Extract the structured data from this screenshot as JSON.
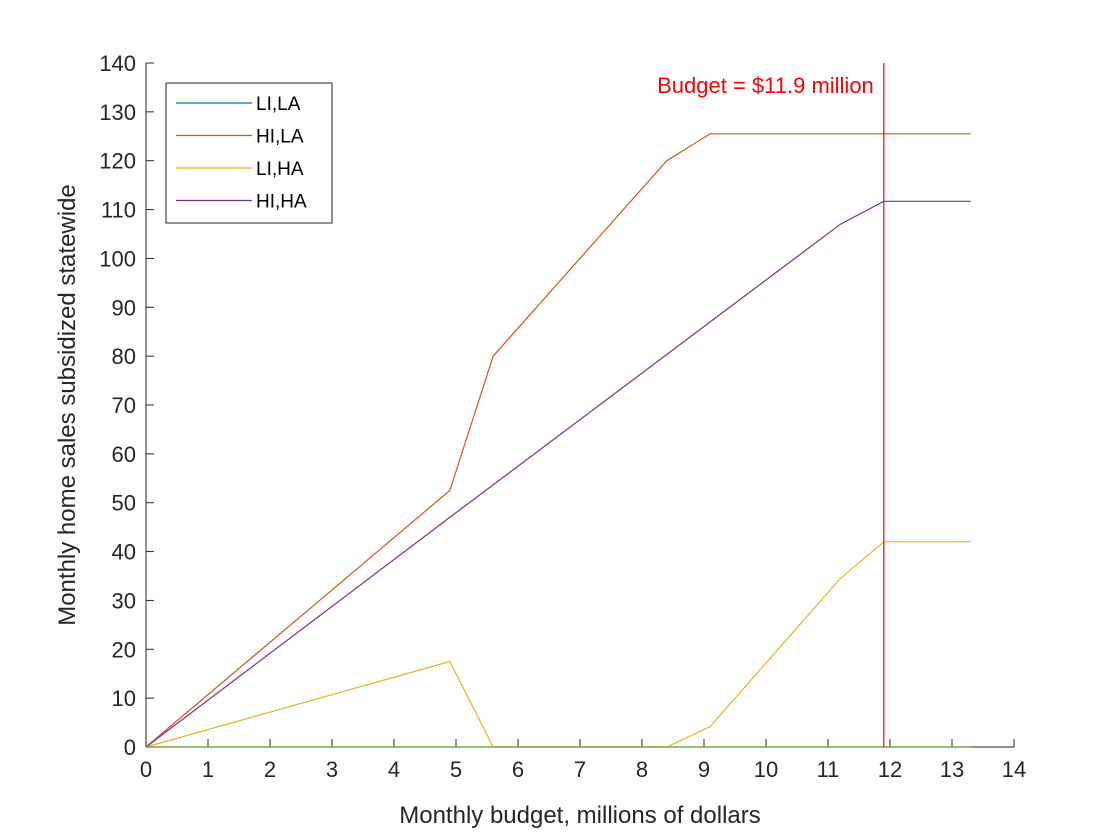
{
  "chart_data": {
    "type": "line",
    "xlabel": "Monthly budget, millions of dollars",
    "ylabel": "Monthly home sales subsidized statewide",
    "xlim": [
      0,
      14
    ],
    "ylim": [
      0,
      140
    ],
    "xticks": [
      0,
      1,
      2,
      3,
      4,
      5,
      6,
      7,
      8,
      9,
      10,
      11,
      12,
      13,
      14
    ],
    "yticks": [
      0,
      10,
      20,
      30,
      40,
      50,
      60,
      70,
      80,
      90,
      100,
      110,
      120,
      130,
      140
    ],
    "grid": false,
    "legend_position": "top-left",
    "series": [
      {
        "name": "LI,LA",
        "color": "#0072BD",
        "x": [
          0,
          13.3
        ],
        "y": [
          0,
          0
        ]
      },
      {
        "name": "HI,LA",
        "color": "#D95319",
        "x": [
          0,
          4.9,
          5.6,
          8.4,
          9.1,
          11.9,
          13.3
        ],
        "y": [
          0,
          52.5,
          80,
          120,
          125.5,
          125.5,
          125.5
        ]
      },
      {
        "name": "LI,HA",
        "color": "#EDB120",
        "x": [
          0,
          4.9,
          5.6,
          8.4,
          9.1,
          11.2,
          11.9,
          13.3
        ],
        "y": [
          0,
          17.5,
          0,
          0,
          4.2,
          34.5,
          42,
          42
        ]
      },
      {
        "name": "HI,HA",
        "color": "#7E2F8E",
        "x": [
          0,
          4.9,
          9.1,
          11.2,
          11.9,
          13.3
        ],
        "y": [
          0,
          47,
          87,
          107,
          111.7,
          111.7
        ]
      },
      {
        "color": "#77AC30",
        "x": [
          0,
          13.3
        ],
        "y": [
          0,
          0
        ]
      }
    ],
    "annotations": [
      {
        "type": "vertical-line",
        "x": 11.9,
        "color": "#FF0000",
        "label": "Budget = $11.9 million"
      }
    ]
  }
}
